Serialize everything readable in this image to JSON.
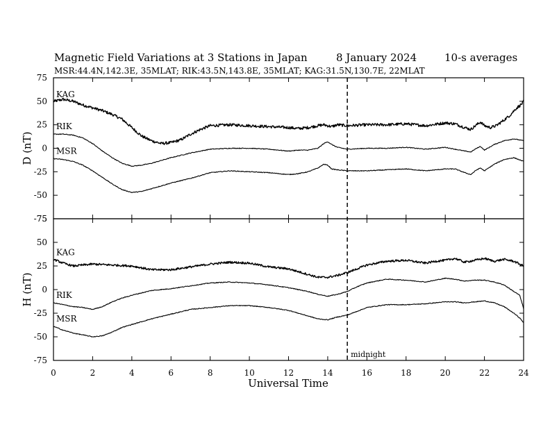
{
  "title": {
    "main": "Magnetic Field Variations at 3 Stations in Japan",
    "date": "8   January  2024",
    "averaging": "10-s averages",
    "stations": "MSR:44.4N,142.3E, 35MLAT;  RIK:43.5N,143.8E, 35MLAT;  KAG:31.5N,130.7E, 22MLAT"
  },
  "chart_data": {
    "type": "line",
    "xlabel": "Universal Time",
    "xlim": [
      0,
      24
    ],
    "xticks": [
      0,
      2,
      4,
      6,
      8,
      10,
      12,
      14,
      16,
      18,
      20,
      22,
      24
    ],
    "annotation": {
      "label": "midnight",
      "x": 15
    },
    "panels": [
      {
        "id": "D",
        "ylabel": "D (nT)",
        "ylim": [
          -75,
          75
        ],
        "yticks": [
          -75,
          -50,
          -25,
          0,
          25,
          50,
          75
        ],
        "series": [
          {
            "name": "KAG",
            "noise": 1.5,
            "x": [
              0,
              0.5,
              1,
              1.5,
              2,
              2.5,
              3,
              3.5,
              4,
              4.5,
              5,
              5.5,
              6,
              6.5,
              7,
              7.5,
              8,
              9,
              10,
              11,
              12,
              12.5,
              13,
              13.5,
              13.8,
              14,
              14.2,
              14.5,
              15,
              16,
              17,
              18,
              19,
              20,
              20.5,
              21,
              21.3,
              21.6,
              21.8,
              22,
              22.3,
              22.6,
              23,
              23.3,
              23.6,
              23.9,
              24
            ],
            "y": [
              50,
              52,
              50,
              46,
              43,
              40,
              36,
              31,
              22,
              13,
              8,
              5,
              6,
              9,
              15,
              20,
              24,
              25,
              24,
              23,
              22,
              21,
              22,
              24,
              25,
              24,
              23,
              25,
              24,
              25,
              25,
              26,
              24,
              27,
              26,
              22,
              20,
              25,
              28,
              24,
              22,
              24,
              30,
              35,
              42,
              47,
              50
            ]
          },
          {
            "name": "RIK",
            "noise": 0.4,
            "x": [
              0,
              0.5,
              1,
              1.5,
              2,
              2.5,
              3,
              3.5,
              4,
              4.5,
              5,
              5.5,
              6,
              7,
              8,
              9,
              10,
              11,
              12,
              12.5,
              13,
              13.5,
              13.8,
              14,
              14.2,
              14.5,
              15,
              16,
              17,
              18,
              19,
              20,
              20.5,
              21,
              21.3,
              21.6,
              21.8,
              22,
              22.5,
              23,
              23.5,
              24
            ],
            "y": [
              15,
              15,
              14,
              11,
              5,
              -3,
              -10,
              -16,
              -19,
              -18,
              -16,
              -13,
              -10,
              -5,
              -1,
              0,
              0,
              -1,
              -3,
              -2,
              -2,
              0,
              5,
              7,
              4,
              1,
              -1,
              0,
              0,
              1,
              -1,
              1,
              -1,
              -3,
              -4,
              0,
              2,
              -2,
              4,
              8,
              10,
              8
            ]
          },
          {
            "name": "MSR",
            "noise": 0.4,
            "x": [
              0,
              0.5,
              1,
              1.5,
              2,
              2.5,
              3,
              3.5,
              4,
              4.5,
              5,
              5.5,
              6,
              7,
              8,
              9,
              10,
              11,
              12,
              12.5,
              13,
              13.5,
              13.8,
              14,
              14.2,
              14.5,
              15,
              16,
              17,
              18,
              19,
              20,
              20.5,
              21,
              21.3,
              21.6,
              21.8,
              22,
              22.5,
              23,
              23.5,
              24
            ],
            "y": [
              -11,
              -12,
              -14,
              -18,
              -24,
              -31,
              -38,
              -44,
              -47,
              -46,
              -43,
              -40,
              -37,
              -32,
              -26,
              -24,
              -25,
              -26,
              -28,
              -27,
              -25,
              -21,
              -17,
              -18,
              -22,
              -23,
              -24,
              -24,
              -23,
              -22,
              -24,
              -22,
              -22,
              -26,
              -28,
              -23,
              -21,
              -24,
              -17,
              -12,
              -10,
              -14
            ]
          }
        ]
      },
      {
        "id": "H",
        "ylabel": "H (nT)",
        "ylim": [
          -75,
          75
        ],
        "yticks": [
          -75,
          -50,
          -25,
          0,
          25,
          50,
          75
        ],
        "series": [
          {
            "name": "KAG",
            "noise": 1.1,
            "x": [
              0,
              0.5,
              1,
              1.5,
              2,
              3,
              4,
              5,
              6,
              7,
              8,
              9,
              10,
              11,
              12,
              12.5,
              13,
              13.5,
              14,
              14.5,
              15,
              15.5,
              16,
              16.5,
              17,
              18,
              19,
              19.5,
              20,
              20.5,
              21,
              21.5,
              22,
              22.5,
              23,
              23.5,
              23.8,
              24
            ],
            "y": [
              32,
              28,
              25,
              26,
              27,
              26,
              25,
              21,
              21,
              24,
              27,
              29,
              28,
              24,
              22,
              19,
              16,
              13,
              13,
              15,
              18,
              22,
              26,
              28,
              30,
              31,
              28,
              30,
              31,
              33,
              29,
              31,
              33,
              30,
              32,
              30,
              27,
              25
            ]
          },
          {
            "name": "RIK",
            "noise": 0.4,
            "x": [
              0,
              0.5,
              1,
              1.5,
              2,
              2.5,
              3,
              3.5,
              4,
              5,
              6,
              7,
              8,
              9,
              10,
              11,
              12,
              12.5,
              13,
              13.5,
              14,
              14.5,
              15,
              15.5,
              16,
              17,
              18,
              19,
              19.5,
              20,
              20.5,
              21,
              21.5,
              22,
              22.5,
              23,
              23.5,
              23.8,
              24
            ],
            "y": [
              -14,
              -16,
              -18,
              -19,
              -21,
              -18,
              -13,
              -9,
              -6,
              -1,
              1,
              4,
              7,
              8,
              7,
              5,
              2,
              0,
              -2,
              -5,
              -7,
              -5,
              -2,
              3,
              7,
              11,
              10,
              8,
              10,
              12,
              11,
              9,
              10,
              10,
              8,
              5,
              -2,
              -6,
              -20
            ]
          },
          {
            "name": "MSR",
            "noise": 0.4,
            "x": [
              0,
              0.5,
              1,
              1.5,
              2,
              2.5,
              3,
              3.5,
              4,
              5,
              6,
              7,
              8,
              9,
              10,
              11,
              12,
              12.5,
              13,
              13.5,
              14,
              14.5,
              15,
              15.5,
              16,
              17,
              18,
              19,
              19.5,
              20,
              20.5,
              21,
              21.5,
              22,
              22.5,
              23,
              23.5,
              23.8,
              24
            ],
            "y": [
              -39,
              -43,
              -46,
              -48,
              -50,
              -49,
              -45,
              -40,
              -37,
              -31,
              -26,
              -21,
              -19,
              -17,
              -17,
              -19,
              -22,
              -25,
              -28,
              -31,
              -32,
              -29,
              -27,
              -23,
              -19,
              -16,
              -16,
              -15,
              -14,
              -13,
              -13,
              -14,
              -13,
              -12,
              -14,
              -18,
              -25,
              -30,
              -35
            ]
          }
        ]
      }
    ]
  }
}
